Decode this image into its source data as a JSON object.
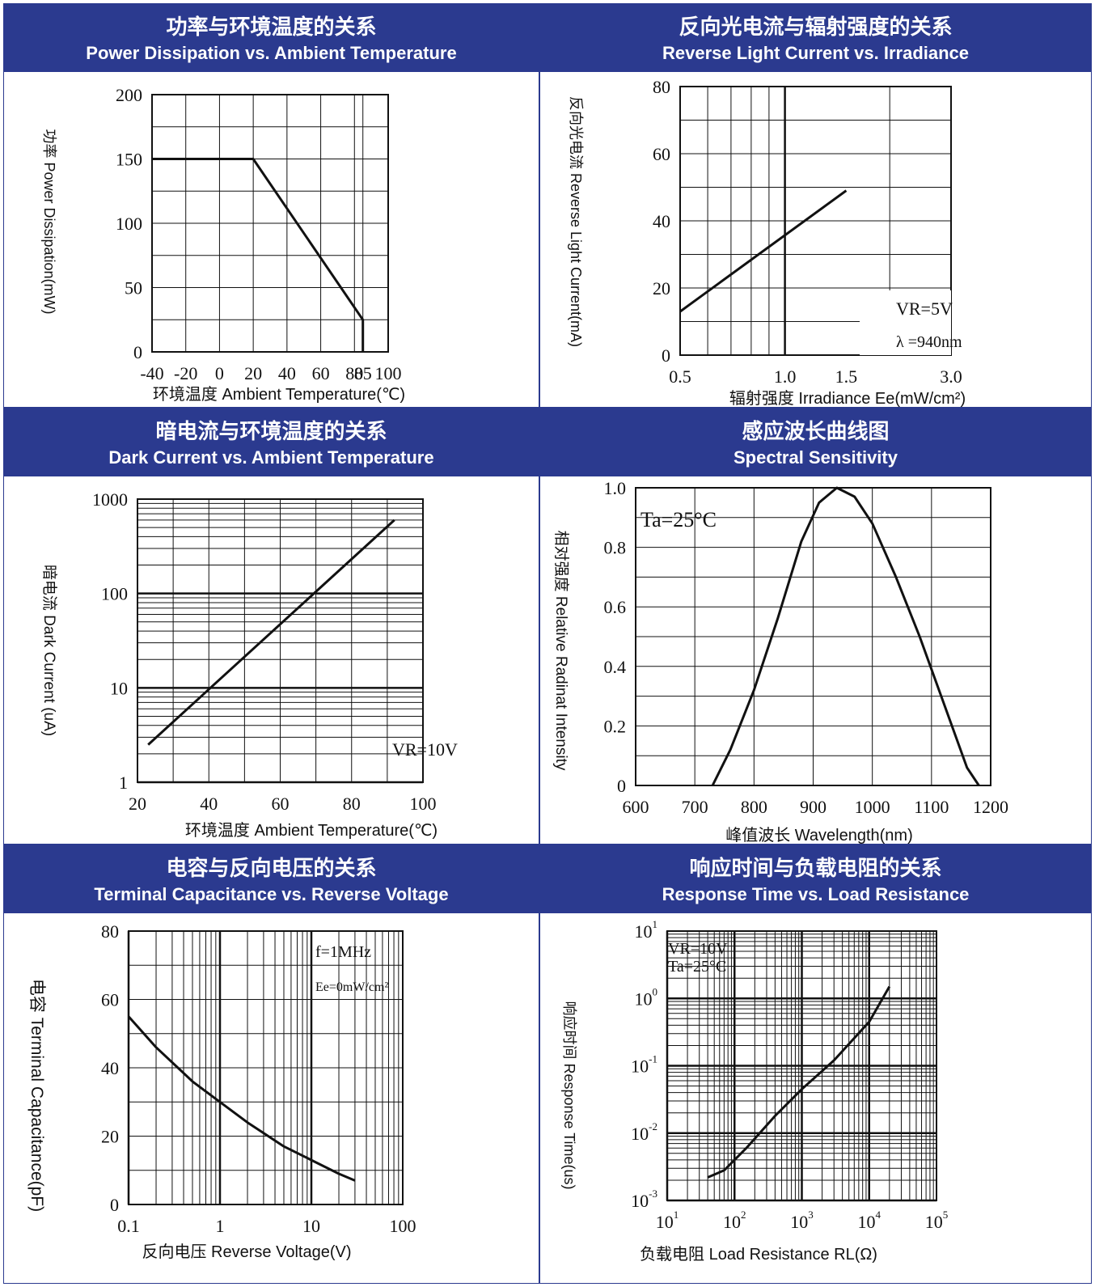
{
  "colors": {
    "header_bg": "#2b3a8f",
    "header_text": "#ffffff",
    "line": "#111111"
  },
  "charts": [
    {
      "title_cn": "功率与环境温度的关系",
      "title_en": "Power Dissipation vs. Ambient Temperature",
      "ylabel": "功率 Power Dissipation(mW)",
      "xlabel": "环境温度 Ambient Temperature(℃)",
      "annotations": []
    },
    {
      "title_cn": "反向光电流与辐射强度的关系",
      "title_en": "Reverse Light Current vs. Irradiance",
      "ylabel": "反向光电流 Reverse Light Current(mA)",
      "xlabel": "辐射强度 Irradiance Ee(mW/cm²)",
      "annotations": [
        "VR=5V",
        "λ =940nm"
      ]
    },
    {
      "title_cn": "暗电流与环境温度的关系",
      "title_en": "Dark Current vs. Ambient Temperature",
      "ylabel": "暗电流 Dark Current (uA)",
      "xlabel": "环境温度 Ambient Temperature(℃)",
      "annotations": [
        "VR=10V"
      ]
    },
    {
      "title_cn": "感应波长曲线图",
      "title_en": "Spectral Sensitivity",
      "ylabel": "相对强度 Relative Radinat Intensity",
      "xlabel": "峰值波长 Wavelength(nm)",
      "annotations": [
        "Ta=25°C"
      ]
    },
    {
      "title_cn": "电容与反向电压的关系",
      "title_en": "Terminal Capacitance vs. Reverse Voltage",
      "ylabel": "电容 Terminal Capacitance(pF)",
      "xlabel": "反向电压 Reverse Voltage(V)",
      "annotations": [
        "f=1MHz",
        "Ee=0mW/cm²"
      ]
    },
    {
      "title_cn": "响应时间与负载电阻的关系",
      "title_en": "Response Time vs. Load Resistance",
      "ylabel": "响应时间 Response Time(us)",
      "xlabel": "负载电阻 Load Resistance RL(Ω)",
      "annotations": [
        "VR=10V",
        "Ta=25°C"
      ]
    }
  ],
  "chart_data": [
    {
      "type": "line",
      "xlim": [
        -40,
        100
      ],
      "ylim": [
        0,
        200
      ],
      "xticks": [
        "-40",
        "-20",
        "0",
        "20",
        "40",
        "60",
        "80",
        "85",
        "100"
      ],
      "xtick_values": [
        -40,
        -20,
        0,
        20,
        40,
        60,
        80,
        85,
        100
      ],
      "yticks": [
        "0",
        "50",
        "100",
        "150",
        "200"
      ],
      "ytick_values": [
        0,
        50,
        100,
        150,
        200
      ],
      "grid": true,
      "series": [
        {
          "x": [
            -40,
            20,
            85,
            85
          ],
          "y": [
            150,
            150,
            25,
            0
          ]
        }
      ]
    },
    {
      "type": "line",
      "xscale": "log",
      "xlim": [
        0.5,
        3.0
      ],
      "ylim": [
        0,
        80
      ],
      "xticks": [
        "0.5",
        "1.0",
        "1.5",
        "3.0"
      ],
      "xtick_values": [
        0.5,
        1.0,
        1.5,
        3.0
      ],
      "yticks": [
        "0",
        "20",
        "40",
        "60",
        "80"
      ],
      "ytick_values": [
        0,
        20,
        40,
        60,
        80
      ],
      "grid": true,
      "series": [
        {
          "x": [
            0.5,
            1.5
          ],
          "y": [
            13,
            49
          ]
        }
      ]
    },
    {
      "type": "line",
      "yscale": "log",
      "xlim": [
        20,
        100
      ],
      "ylim": [
        1,
        1000
      ],
      "xticks": [
        "20",
        "40",
        "60",
        "80",
        "100"
      ],
      "xtick_values": [
        20,
        40,
        60,
        80,
        100
      ],
      "yticks": [
        "1",
        "10",
        "100",
        "1000"
      ],
      "ytick_values": [
        1,
        10,
        100,
        1000
      ],
      "grid": true,
      "series": [
        {
          "x": [
            23,
            92
          ],
          "y": [
            2.5,
            600
          ]
        }
      ]
    },
    {
      "type": "line",
      "xlim": [
        600,
        1200
      ],
      "ylim": [
        0,
        1.0
      ],
      "xticks": [
        "600",
        "700",
        "800",
        "900",
        "1000",
        "1100",
        "1200"
      ],
      "xtick_values": [
        600,
        700,
        800,
        900,
        1000,
        1100,
        1200
      ],
      "yticks": [
        "0",
        "0.2",
        "0.4",
        "0.6",
        "0.8",
        "1.0"
      ],
      "ytick_values": [
        0,
        0.2,
        0.4,
        0.6,
        0.8,
        1.0
      ],
      "grid": true,
      "series": [
        {
          "x": [
            730,
            760,
            800,
            840,
            880,
            910,
            940,
            970,
            1000,
            1040,
            1080,
            1120,
            1160,
            1180
          ],
          "y": [
            0.0,
            0.12,
            0.32,
            0.56,
            0.82,
            0.95,
            1.0,
            0.97,
            0.88,
            0.7,
            0.5,
            0.28,
            0.06,
            0.0
          ]
        }
      ]
    },
    {
      "type": "line",
      "xscale": "log",
      "xlim": [
        0.1,
        100
      ],
      "ylim": [
        0,
        80
      ],
      "xticks": [
        "0.1",
        "1",
        "10",
        "100"
      ],
      "xtick_values": [
        0.1,
        1,
        10,
        100
      ],
      "yticks": [
        "0",
        "20",
        "40",
        "60",
        "80"
      ],
      "ytick_values": [
        0,
        20,
        40,
        60,
        80
      ],
      "grid": true,
      "series": [
        {
          "x": [
            0.1,
            0.2,
            0.5,
            1,
            2,
            5,
            10,
            20,
            30
          ],
          "y": [
            55,
            46,
            36,
            30,
            24,
            17,
            13,
            9,
            7
          ]
        }
      ]
    },
    {
      "type": "line",
      "xscale": "log",
      "yscale": "log",
      "xlim": [
        10,
        100000
      ],
      "ylim": [
        0.001,
        10
      ],
      "xticks": [
        "10^1",
        "10^2",
        "10^3",
        "10^4",
        "10^5"
      ],
      "xtick_values": [
        10,
        100,
        1000,
        10000,
        100000
      ],
      "yticks": [
        "10^-3",
        "10^-2",
        "10^-1",
        "10^0",
        "10^1"
      ],
      "ytick_values": [
        0.001,
        0.01,
        0.1,
        1,
        10
      ],
      "grid": true,
      "series": [
        {
          "x": [
            40,
            70,
            150,
            400,
            1000,
            3000,
            10000,
            20000
          ],
          "y": [
            0.0022,
            0.0028,
            0.006,
            0.018,
            0.045,
            0.12,
            0.45,
            1.5
          ]
        }
      ]
    }
  ]
}
